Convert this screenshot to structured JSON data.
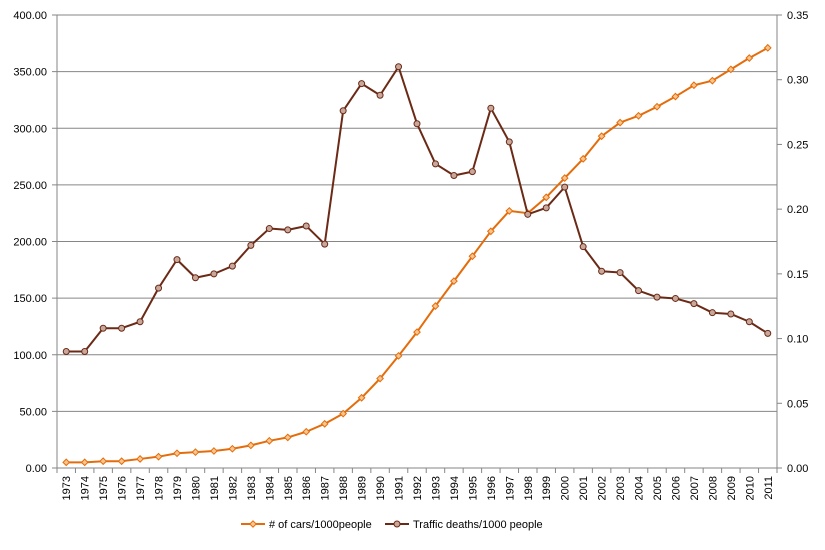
{
  "chart_data": {
    "type": "line",
    "title": "",
    "xlabel": "",
    "ylabel": "",
    "y2label": "",
    "categories": [
      "1973",
      "1974",
      "1975",
      "1976",
      "1977",
      "1978",
      "1979",
      "1980",
      "1981",
      "1982",
      "1983",
      "1984",
      "1985",
      "1986",
      "1987",
      "1988",
      "1989",
      "1990",
      "1991",
      "1992",
      "1993",
      "1994",
      "1995",
      "1996",
      "1997",
      "1998",
      "1999",
      "2000",
      "2001",
      "2002",
      "2003",
      "2004",
      "2005",
      "2006",
      "2007",
      "2008",
      "2009",
      "2010",
      "2011"
    ],
    "ylim": [
      0,
      400
    ],
    "y2lim": [
      0,
      0.35
    ],
    "yticks": [
      "0.00",
      "50.00",
      "100.00",
      "150.00",
      "200.00",
      "250.00",
      "300.00",
      "350.00",
      "400.00"
    ],
    "y2ticks": [
      "0.00",
      "0.05",
      "0.10",
      "0.15",
      "0.20",
      "0.25",
      "0.30",
      "0.35"
    ],
    "grid": "horizontal",
    "legend_position": "bottom",
    "series": [
      {
        "name": "# of cars/1000people",
        "axis": "left",
        "color": "#E46C0A",
        "marker": "diamond",
        "values": [
          5,
          5,
          6,
          6,
          8,
          10,
          13,
          14,
          15,
          17,
          20,
          24,
          27,
          32,
          39,
          48,
          62,
          79,
          99,
          120,
          143,
          165,
          187,
          209,
          227,
          225,
          239,
          256,
          273,
          293,
          305,
          311,
          319,
          328,
          338,
          342,
          352,
          362,
          371
        ]
      },
      {
        "name": "Traffic deaths/1000 people",
        "axis": "right",
        "color": "#6B2A16",
        "marker": "circle",
        "values": [
          0.09,
          0.09,
          0.108,
          0.108,
          0.113,
          0.139,
          0.161,
          0.147,
          0.15,
          0.156,
          0.172,
          0.185,
          0.184,
          0.187,
          0.173,
          0.276,
          0.297,
          0.288,
          0.31,
          0.266,
          0.235,
          0.226,
          0.229,
          0.278,
          0.252,
          0.196,
          0.201,
          0.217,
          0.171,
          0.152,
          0.151,
          0.137,
          0.132,
          0.131,
          0.127,
          0.12,
          0.119,
          0.113,
          0.104
        ]
      }
    ]
  }
}
